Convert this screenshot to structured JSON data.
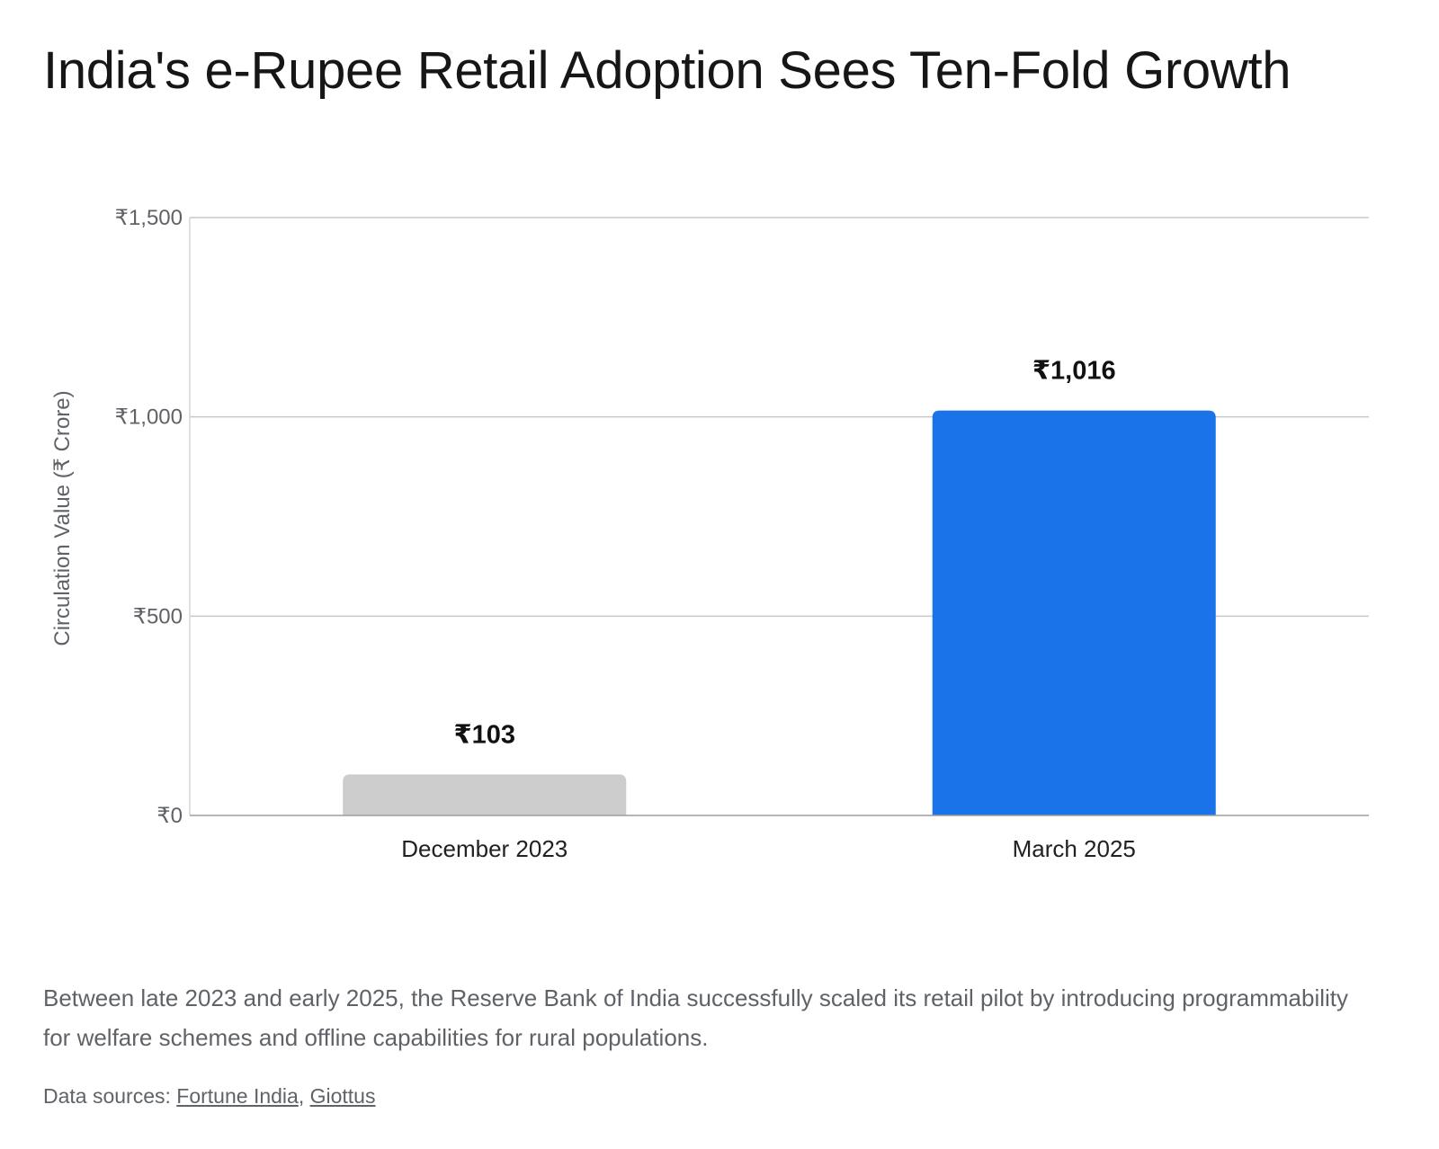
{
  "chart_data": {
    "type": "bar",
    "title": "India's e-Rupee Retail Adoption Sees Ten-Fold Growth",
    "categories": [
      "December 2023",
      "March 2025"
    ],
    "values": [
      103,
      1016
    ],
    "value_labels": [
      "₹103",
      "₹1,016"
    ],
    "bar_colors": [
      "#cccccc",
      "#1a73e8"
    ],
    "xlabel": "",
    "ylabel": "Circulation Value (₹ Crore)",
    "ylim": [
      0,
      1500
    ],
    "yticks": [
      0,
      500,
      1000,
      1500
    ],
    "ytick_labels": [
      "₹0",
      "₹500",
      "₹1,000",
      "₹1,500"
    ],
    "grid": true,
    "legend": "none"
  },
  "caption": "Between late 2023 and early 2025, the Reserve Bank of India successfully scaled its retail pilot by introducing programmability for welfare schemes and offline capabilities for rural populations.",
  "sources": {
    "prefix": "Data sources:",
    "separator": ",",
    "links": [
      "Fortune India",
      "Giottus"
    ]
  }
}
